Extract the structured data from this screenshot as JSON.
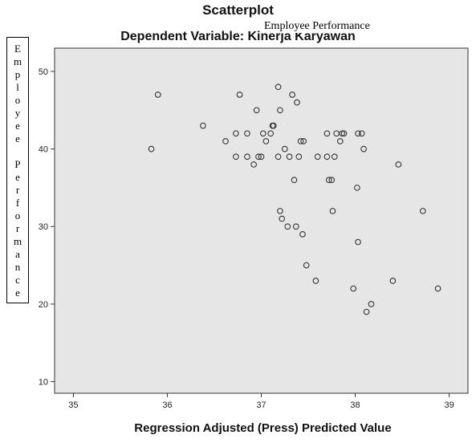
{
  "chart_data": {
    "type": "scatter",
    "title": "Scatterplot",
    "subtitle": "Dependent Variable: Kinerja Karyawan",
    "overlay_label": "Employee Performance",
    "xlabel": "Regression Adjusted (Press) Predicted Value",
    "ylabel": "Employee Performance",
    "xlim": [
      34.8,
      39.2
    ],
    "ylim": [
      8.5,
      53
    ],
    "xticks": [
      "35",
      "36",
      "37",
      "38",
      "39"
    ],
    "yticks": [
      "10",
      "20",
      "30",
      "40",
      "50"
    ],
    "grid": false,
    "points": [
      [
        35.83,
        40
      ],
      [
        35.9,
        47
      ],
      [
        36.38,
        43
      ],
      [
        36.62,
        41
      ],
      [
        36.73,
        42
      ],
      [
        36.73,
        39
      ],
      [
        36.77,
        47
      ],
      [
        36.85,
        42
      ],
      [
        36.85,
        39
      ],
      [
        36.92,
        38
      ],
      [
        36.95,
        45
      ],
      [
        36.97,
        39
      ],
      [
        37.0,
        39
      ],
      [
        37.02,
        42
      ],
      [
        37.05,
        41
      ],
      [
        37.1,
        42
      ],
      [
        37.12,
        43
      ],
      [
        37.13,
        43
      ],
      [
        37.18,
        39
      ],
      [
        37.18,
        48
      ],
      [
        37.2,
        45
      ],
      [
        37.2,
        32
      ],
      [
        37.22,
        31
      ],
      [
        37.25,
        40
      ],
      [
        37.28,
        30
      ],
      [
        37.3,
        39
      ],
      [
        37.33,
        47
      ],
      [
        37.35,
        36
      ],
      [
        37.37,
        30
      ],
      [
        37.38,
        46
      ],
      [
        37.4,
        39
      ],
      [
        37.42,
        41
      ],
      [
        37.44,
        29
      ],
      [
        37.45,
        41
      ],
      [
        37.48,
        25
      ],
      [
        37.58,
        23
      ],
      [
        37.6,
        39
      ],
      [
        37.7,
        42
      ],
      [
        37.7,
        39
      ],
      [
        37.72,
        36
      ],
      [
        37.75,
        36
      ],
      [
        37.76,
        32
      ],
      [
        37.78,
        39
      ],
      [
        37.8,
        42
      ],
      [
        37.84,
        41
      ],
      [
        37.86,
        42
      ],
      [
        37.88,
        42
      ],
      [
        37.98,
        22
      ],
      [
        38.02,
        35
      ],
      [
        38.03,
        28
      ],
      [
        38.03,
        42
      ],
      [
        38.07,
        42
      ],
      [
        38.09,
        40
      ],
      [
        38.12,
        19
      ],
      [
        38.17,
        20
      ],
      [
        38.4,
        23
      ],
      [
        38.46,
        38
      ],
      [
        38.72,
        32
      ],
      [
        38.88,
        22
      ]
    ]
  }
}
